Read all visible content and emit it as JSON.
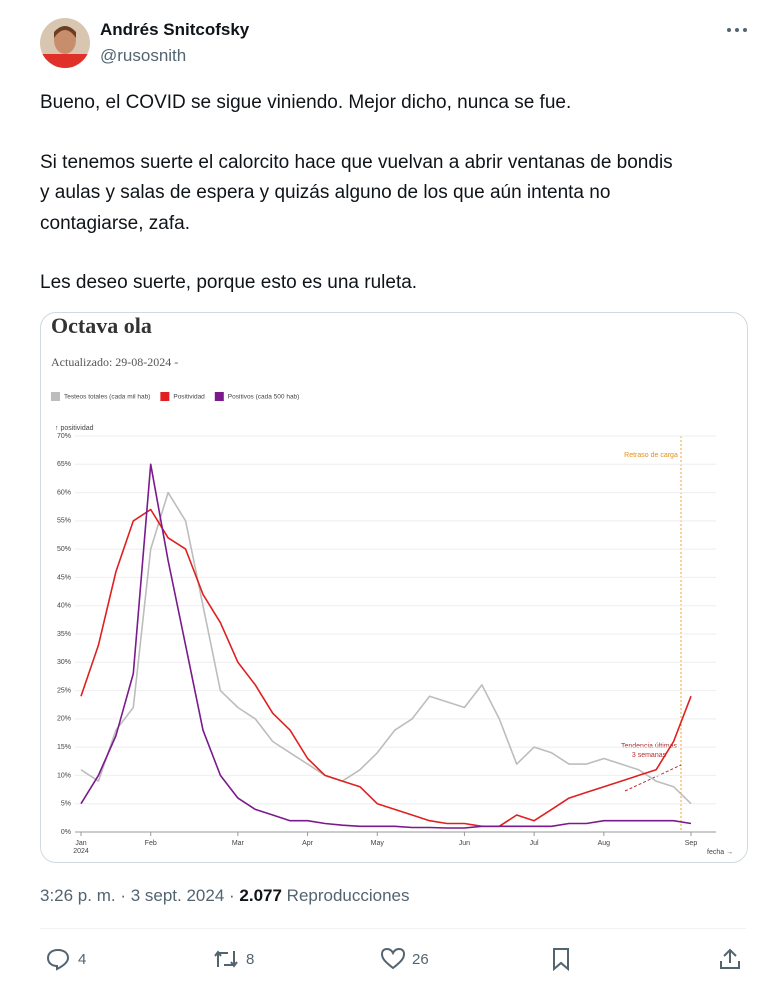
{
  "tweet": {
    "author": "Andrés Snitcofsky",
    "handle": "@rusosnith",
    "body_lines": [
      "Bueno, el COVID se sigue viniendo. Mejor dicho, nunca se fue.",
      "Si tenemos suerte el calorcito hace que vuelvan a abrir ventanas de bondis",
      "y aulas y salas de espera y quizás alguno de los que aún intenta no",
      "contagiarse, zafa.",
      "Les deseo suerte, porque esto es una ruleta."
    ],
    "timestamp": "3:26 p. m. · 3 sept. 2024 · ",
    "views": "2.077",
    "views_label": " Reproducciones",
    "replies": 4,
    "retweets": 8,
    "likes": 26
  },
  "chart_data": {
    "type": "line",
    "title": "Octava ola",
    "subtitle": "Actualizado: 29-08-2024 -",
    "y_label": "↑ positividad",
    "x_label": "fecha →",
    "x_year": "2024",
    "annotations": [
      "Retraso de carga",
      "Tendencia últimas",
      "3 semanas"
    ],
    "categories": [
      "Jan",
      null,
      null,
      null,
      "Feb",
      null,
      null,
      null,
      null,
      "Mar",
      null,
      null,
      null,
      "Apr",
      null,
      null,
      null,
      "May",
      null,
      null,
      null,
      null,
      "Jun",
      null,
      null,
      null,
      "Jul",
      null,
      null,
      null,
      "Aug",
      null,
      null,
      null,
      null,
      "Sep"
    ],
    "series": [
      {
        "name": "Testeos totales (cada mil hab)",
        "color": "#bdbdbd",
        "values": [
          11,
          9,
          18,
          22,
          50,
          60,
          55,
          40,
          25,
          22,
          20,
          16,
          14,
          12,
          10,
          9,
          11,
          14,
          18,
          20,
          24,
          23,
          22,
          26,
          20,
          12,
          15,
          14,
          12,
          12,
          13,
          12,
          11,
          9,
          8,
          5
        ]
      },
      {
        "name": "Positividad",
        "color": "#e02020",
        "values": [
          24,
          33,
          46,
          55,
          57,
          52,
          50,
          42,
          37,
          30,
          26,
          21,
          18,
          13,
          10,
          9,
          8,
          5,
          4,
          3,
          2,
          1.5,
          1.5,
          1,
          1,
          3,
          2,
          4,
          6,
          7,
          8,
          9,
          10,
          11,
          16,
          24
        ]
      },
      {
        "name": "Positivos (cada 500 hab)",
        "color": "#7a1a8c",
        "values": [
          5,
          10,
          17,
          28,
          65,
          48,
          33,
          18,
          10,
          6,
          4,
          3,
          2,
          2,
          1.5,
          1.2,
          1,
          1,
          1,
          0.8,
          0.8,
          0.7,
          0.7,
          1,
          1,
          1,
          1,
          1,
          1.5,
          1.5,
          2,
          2,
          2,
          2,
          2,
          1.5
        ]
      }
    ],
    "ylim": [
      0,
      70
    ],
    "yticks": [
      {
        "value": 0,
        "label": "0%"
      },
      {
        "value": 5,
        "label": "5%"
      },
      {
        "value": 10,
        "label": "10%"
      },
      {
        "value": 15,
        "label": "15%"
      },
      {
        "value": 20,
        "label": "20%"
      },
      {
        "value": 25,
        "label": "25%"
      },
      {
        "value": 30,
        "label": "30%"
      },
      {
        "value": 35,
        "label": "35%"
      },
      {
        "value": 40,
        "label": "40%"
      },
      {
        "value": 45,
        "label": "45%"
      },
      {
        "value": 50,
        "label": "50%"
      },
      {
        "value": 55,
        "label": "55%"
      },
      {
        "value": 60,
        "label": "60%"
      },
      {
        "value": 65,
        "label": "65%"
      },
      {
        "value": 70,
        "label": "70%"
      }
    ],
    "grid": true
  }
}
